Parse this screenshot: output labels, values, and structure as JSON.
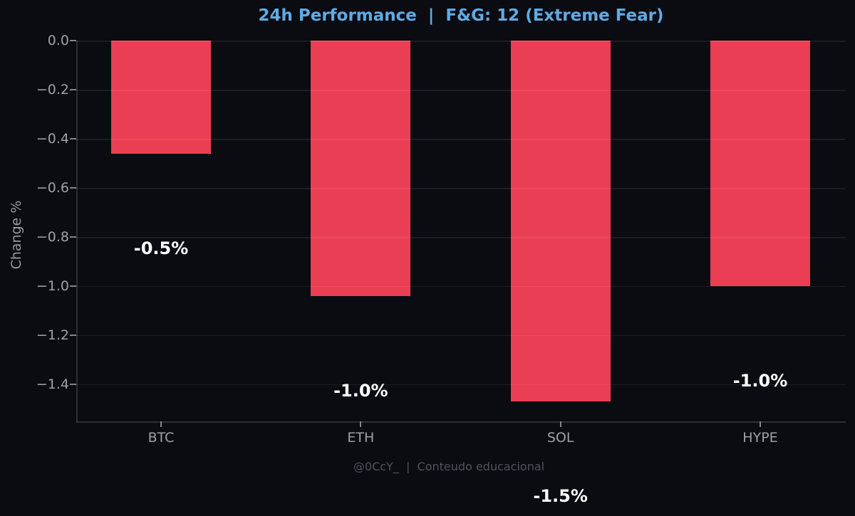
{
  "chart_data": {
    "type": "bar",
    "title": "24h Performance  |  F&G: 12 (Extreme Fear)",
    "ylabel": "Change %",
    "xlabel": "",
    "footer": "@0CcY_  |  Conteudo educacional",
    "categories": [
      "BTC",
      "ETH",
      "SOL",
      "HYPE"
    ],
    "values": [
      -0.46,
      -1.04,
      -1.47,
      -1.0
    ],
    "bar_labels": [
      "-0.5%",
      "-1.0%",
      "-1.5%",
      "-1.0%"
    ],
    "ylim": [
      -1.55,
      0
    ],
    "yticks": [
      {
        "label": "0.0",
        "value": 0.0
      },
      {
        "label": "−0.2",
        "value": -0.2
      },
      {
        "label": "−0.4",
        "value": -0.4
      },
      {
        "label": "−0.6",
        "value": -0.6
      },
      {
        "label": "−0.8",
        "value": -0.8
      },
      {
        "label": "−1.0",
        "value": -1.0
      },
      {
        "label": "−1.2",
        "value": -1.2
      },
      {
        "label": "−1.4",
        "value": -1.4
      }
    ],
    "grid": true,
    "legend_position": "none",
    "colors": {
      "background": "#0b0b12",
      "bar": "#ea3e54",
      "title": "#5fabe4",
      "tick_label": "#a0a0a6",
      "value_label": "#ffffff",
      "footer": "#50535c"
    }
  }
}
